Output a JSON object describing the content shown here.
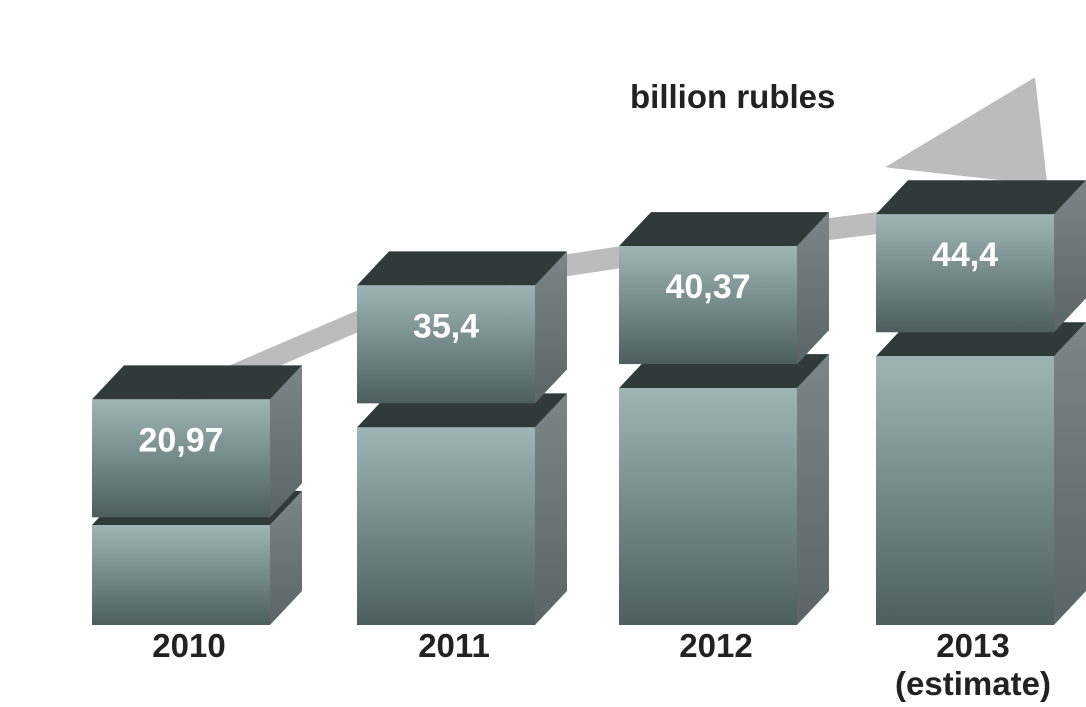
{
  "chart_data": {
    "type": "bar",
    "unit_label": "billion rubles",
    "categories": [
      "2010",
      "2011",
      "2012",
      "2013"
    ],
    "category_sublabels": [
      "",
      "",
      "",
      "(estimate)"
    ],
    "values": [
      20.97,
      35.4,
      40.37,
      44.4
    ],
    "value_labels": [
      "20,97",
      "35,4",
      "40,37",
      "44,4"
    ],
    "colors": {
      "front_light": "#9fb5b5",
      "front_dark": "#4e5e5e",
      "top": "#2f3a39",
      "side": "#6b7575",
      "arrow": "#b0b0b0"
    }
  }
}
